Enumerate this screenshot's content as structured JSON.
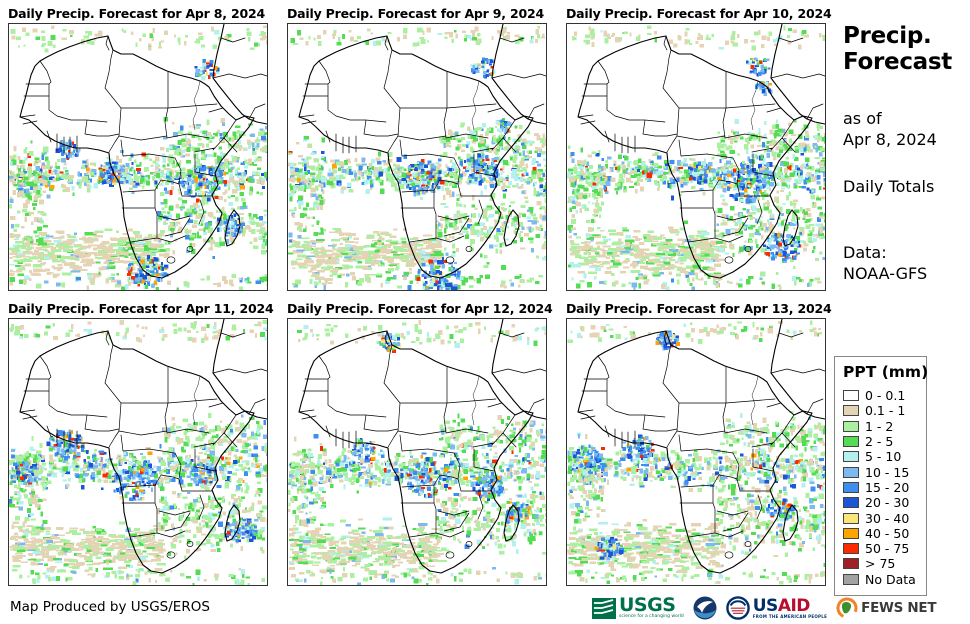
{
  "panels": [
    {
      "title": "Daily Precip. Forecast for Apr 8, 2024"
    },
    {
      "title": "Daily Precip. Forecast for Apr 9, 2024"
    },
    {
      "title": "Daily Precip. Forecast for Apr 10, 2024"
    },
    {
      "title": "Daily Precip. Forecast for Apr 11, 2024"
    },
    {
      "title": "Daily Precip. Forecast for Apr 12, 2024"
    },
    {
      "title": "Daily Precip. Forecast for Apr 13, 2024"
    }
  ],
  "sidebar": {
    "title_line1": "Precip.",
    "title_line2": "Forecast",
    "as_of_label": "as of",
    "as_of_date": "Apr 8, 2024",
    "totals_label": "Daily Totals",
    "data_label": "Data:",
    "data_source": "NOAA-GFS"
  },
  "legend": {
    "title": "PPT (mm)",
    "items": [
      {
        "label": "0 - 0.1",
        "color": "#FFFFFF"
      },
      {
        "label": "0.1 - 1",
        "color": "#E4D4B4"
      },
      {
        "label": "1 - 2",
        "color": "#AAF0A0"
      },
      {
        "label": "2 - 5",
        "color": "#55DC55"
      },
      {
        "label": "5 - 10",
        "color": "#B2F1F0"
      },
      {
        "label": "10 - 15",
        "color": "#7CB9F0"
      },
      {
        "label": "15 - 20",
        "color": "#3E8EEF"
      },
      {
        "label": "20 - 30",
        "color": "#1A56D6"
      },
      {
        "label": "30 - 40",
        "color": "#FAE678"
      },
      {
        "label": "40 - 50",
        "color": "#FFA500"
      },
      {
        "label": "50 - 75",
        "color": "#FB2B00"
      },
      {
        "label": "> 75",
        "color": "#9F2025"
      },
      {
        "label": "No Data",
        "color": "#A2A2A2"
      }
    ]
  },
  "footer": {
    "credit": "Map Produced by USGS/EROS",
    "usgs_text": "USGS",
    "usgs_tagline": "science for a changing world",
    "usaid_us": "US",
    "usaid_aid": "AID",
    "usaid_tagline": "FROM THE AMERICAN PEOPLE",
    "fewsnet_text": "FEWS NET"
  }
}
